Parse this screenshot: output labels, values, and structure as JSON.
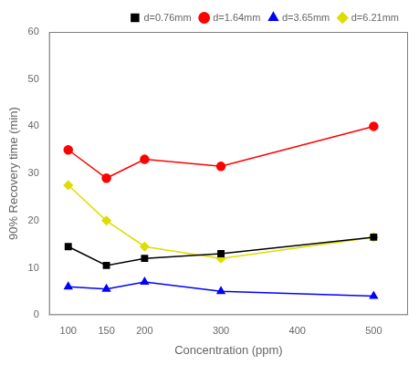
{
  "chart_data": {
    "type": "line",
    "x": [
      100,
      150,
      200,
      300,
      500
    ],
    "series": [
      {
        "name": "d=0.76mm",
        "color": "black",
        "marker": "square",
        "values": [
          14.5,
          10.5,
          12.0,
          13.0,
          16.5
        ]
      },
      {
        "name": "d=1.64mm",
        "color": "red",
        "marker": "circle",
        "values": [
          35.0,
          29.0,
          33.0,
          31.5,
          40.0
        ]
      },
      {
        "name": "d=3.65mm",
        "color": "blue",
        "marker": "triangle",
        "values": [
          6.0,
          5.5,
          7.0,
          5.0,
          4.0
        ]
      },
      {
        "name": "d=6.21mm",
        "color": "#dddd00",
        "marker": "diamond",
        "values": [
          27.5,
          20.0,
          14.5,
          12.0,
          16.5
        ]
      }
    ],
    "xlabel": "Concentration (ppm)",
    "ylabel": "90% Recovery time (min)",
    "xlim": [
      75,
      545
    ],
    "ylim": [
      0,
      60
    ],
    "xticks": [
      100,
      150,
      200,
      300,
      400,
      500
    ],
    "yticks": [
      0,
      10,
      20,
      30,
      40,
      50,
      60
    ],
    "grid": false,
    "legend": "upper right"
  }
}
